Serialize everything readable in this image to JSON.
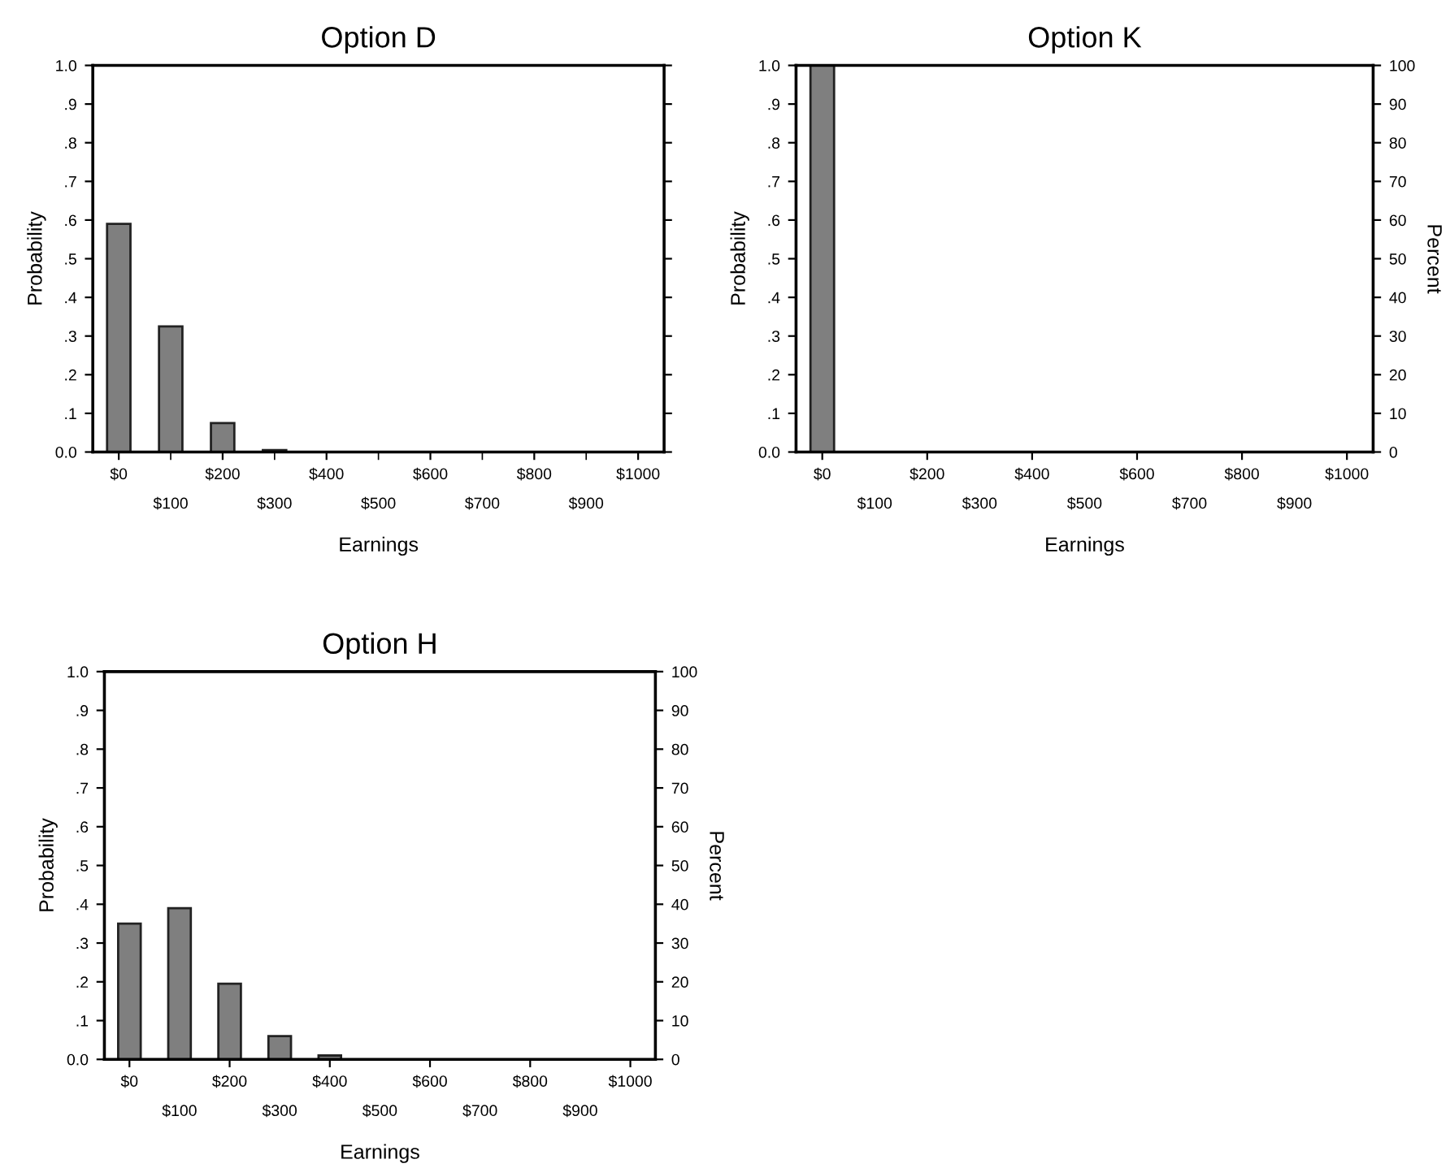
{
  "chart_data": [
    {
      "type": "bar",
      "title": "Option D",
      "xlabel": "Earnings",
      "ylabel": "Probability",
      "color": "#7f7f7f",
      "categories": [
        "$0",
        "$100",
        "$200",
        "$300",
        "$400",
        "$500",
        "$600",
        "$700",
        "$800",
        "$900",
        "$1000"
      ],
      "values": [
        0.59,
        0.325,
        0.075,
        0.005,
        null,
        null,
        null,
        null,
        null,
        null,
        null
      ],
      "ylim": [
        0,
        1
      ],
      "yticks": [
        {
          "value": 0,
          "label": "0.0"
        },
        {
          "value": 0.1,
          "label": ".1"
        },
        {
          "value": 0.2,
          "label": ".2"
        },
        {
          "value": 0.3,
          "label": ".3"
        },
        {
          "value": 0.4,
          "label": ".4"
        },
        {
          "value": 0.5,
          "label": ".5"
        },
        {
          "value": 0.6,
          "label": ".6"
        },
        {
          "value": 0.7,
          "label": ".7"
        },
        {
          "value": 0.8,
          "label": ".8"
        },
        {
          "value": 0.9,
          "label": ".9"
        },
        {
          "value": 1,
          "label": "1.0"
        }
      ]
    },
    {
      "type": "bar",
      "title": "Option K",
      "xlabel": "Earnings",
      "ylabel": "Probability",
      "y2label": "Percent",
      "color": "#7f7f7f",
      "categories": [
        "$0",
        "$100",
        "$200",
        "$300",
        "$400",
        "$500",
        "$600",
        "$700",
        "$800",
        "$900",
        "$1000"
      ],
      "values": [
        1.0,
        null,
        null,
        null,
        null,
        null,
        null,
        null,
        null,
        null,
        null
      ],
      "ylim": [
        0,
        1
      ],
      "yticks": [
        {
          "value": 0,
          "label": "0.0"
        },
        {
          "value": 0.1,
          "label": ".1"
        },
        {
          "value": 0.2,
          "label": ".2"
        },
        {
          "value": 0.3,
          "label": ".3"
        },
        {
          "value": 0.4,
          "label": ".4"
        },
        {
          "value": 0.5,
          "label": ".5"
        },
        {
          "value": 0.6,
          "label": ".6"
        },
        {
          "value": 0.7,
          "label": ".7"
        },
        {
          "value": 0.8,
          "label": ".8"
        },
        {
          "value": 0.9,
          "label": ".9"
        },
        {
          "value": 1,
          "label": "1.0"
        }
      ],
      "y2lim": [
        0,
        100
      ],
      "y2ticks": [
        0,
        10,
        20,
        30,
        40,
        50,
        60,
        70,
        80,
        90,
        100
      ]
    },
    {
      "type": "bar",
      "title": "Option H",
      "xlabel": "Earnings",
      "ylabel": "Probability",
      "y2label": "Percent",
      "color": "#7f7f7f",
      "categories": [
        "$0",
        "$100",
        "$200",
        "$300",
        "$400",
        "$500",
        "$600",
        "$700",
        "$800",
        "$900",
        "$1000"
      ],
      "values": [
        0.35,
        0.39,
        0.195,
        0.06,
        0.01,
        null,
        null,
        null,
        null,
        null,
        null
      ],
      "ylim": [
        0,
        1
      ],
      "yticks": [
        {
          "value": 0,
          "label": "0.0"
        },
        {
          "value": 0.1,
          "label": ".1"
        },
        {
          "value": 0.2,
          "label": ".2"
        },
        {
          "value": 0.3,
          "label": ".3"
        },
        {
          "value": 0.4,
          "label": ".4"
        },
        {
          "value": 0.5,
          "label": ".5"
        },
        {
          "value": 0.6,
          "label": ".6"
        },
        {
          "value": 0.7,
          "label": ".7"
        },
        {
          "value": 0.8,
          "label": ".8"
        },
        {
          "value": 0.9,
          "label": ".9"
        },
        {
          "value": 1,
          "label": "1.0"
        }
      ],
      "y2lim": [
        0,
        100
      ],
      "y2ticks": [
        0,
        10,
        20,
        30,
        40,
        50,
        60,
        70,
        80,
        90,
        100
      ]
    }
  ]
}
